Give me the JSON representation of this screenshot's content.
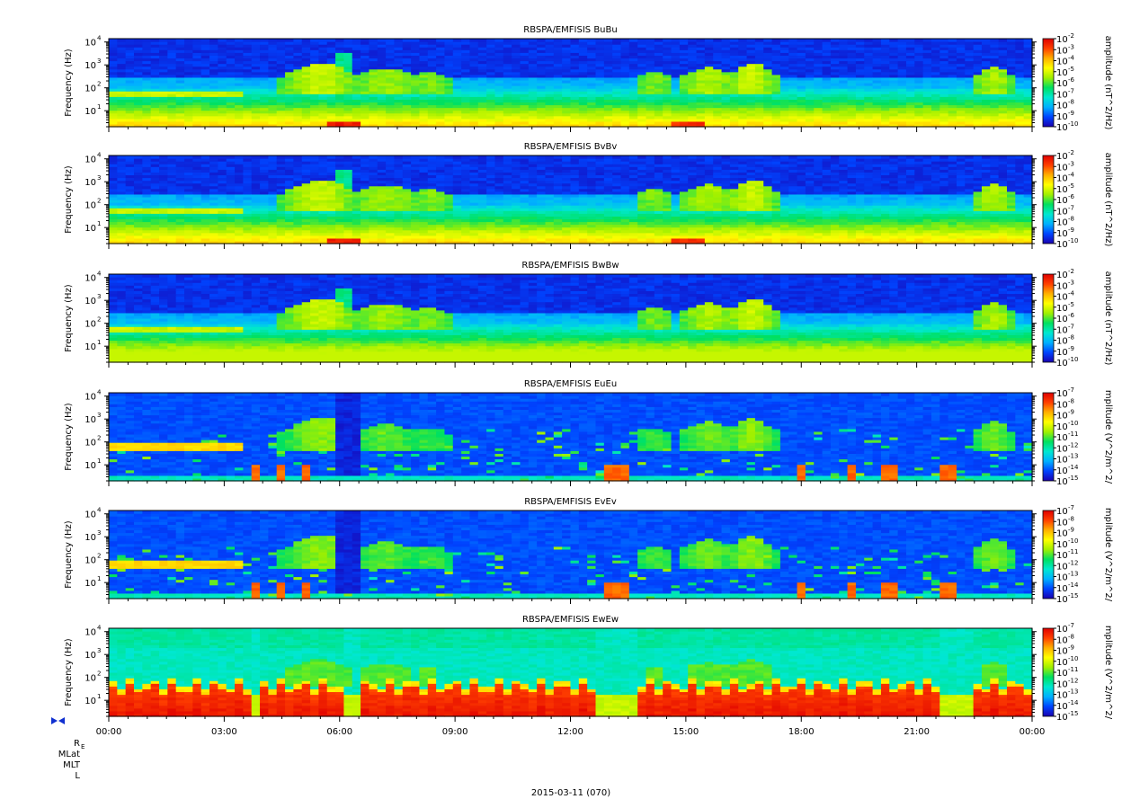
{
  "figure": {
    "date_label": "2015-03-11 (070)",
    "ephemeris_labels": [
      "R",
      "MLat",
      "MLT",
      "L"
    ],
    "ephemeris_subscript": "E"
  },
  "chart_data": {
    "type": "heatmap",
    "x_tick_labels": [
      "00:00",
      "03:00",
      "06:00",
      "09:00",
      "12:00",
      "15:00",
      "18:00",
      "21:00",
      "00:00"
    ],
    "x_range_hours": [
      0,
      24
    ],
    "y_scale": "log",
    "y_range_hz": [
      2,
      14000
    ],
    "y_tick_exponents": [
      1,
      2,
      3,
      4
    ],
    "y_tick_base": "10",
    "colorscale": [
      "#1a00b0",
      "#0044ff",
      "#00b0ff",
      "#00e8d0",
      "#00e060",
      "#a0f000",
      "#ffff00",
      "#ffb000",
      "#ff4000",
      "#e00000"
    ],
    "panels": [
      {
        "title": "RBSPA/EMFISIS  BuBu",
        "ylabel": "Frequency (Hz)",
        "cbar_label": "amplitude (nT^2/Hz)",
        "cbar_exponents": [
          "-10",
          "-9",
          "-8",
          "-7",
          "-6",
          "-5",
          "-4",
          "-3",
          "-2"
        ],
        "kind": "B",
        "variant": 0
      },
      {
        "title": "RBSPA/EMFISIS  BvBv",
        "ylabel": "Frequency (Hz)",
        "cbar_label": "amplitude (nT^2/Hz)",
        "cbar_exponents": [
          "-10",
          "-9",
          "-8",
          "-7",
          "-6",
          "-5",
          "-4",
          "-3",
          "-2"
        ],
        "kind": "B",
        "variant": 1
      },
      {
        "title": "RBSPA/EMFISIS  BwBw",
        "ylabel": "Frequency (Hz)",
        "cbar_label": "amplitude (nT^2/Hz)",
        "cbar_exponents": [
          "-10",
          "-9",
          "-8",
          "-7",
          "-6",
          "-5",
          "-4",
          "-3",
          "-2"
        ],
        "kind": "B",
        "variant": 2
      },
      {
        "title": "RBSPA/EMFISIS  EuEu",
        "ylabel": "Frequency (Hz)",
        "cbar_label": "mplitude (V^2/m^2/",
        "cbar_exponents": [
          "-15",
          "-14",
          "-13",
          "-12",
          "-11",
          "-10",
          "-9",
          "-8",
          "-7"
        ],
        "kind": "E",
        "variant": 0
      },
      {
        "title": "RBSPA/EMFISIS  EvEv",
        "ylabel": "Frequency (Hz)",
        "cbar_label": "mplitude (V^2/m^2/",
        "cbar_exponents": [
          "-15",
          "-14",
          "-13",
          "-12",
          "-11",
          "-10",
          "-9",
          "-8",
          "-7"
        ],
        "kind": "E",
        "variant": 1
      },
      {
        "title": "RBSPA/EMFISIS  EwEw",
        "ylabel": "Frequency (Hz)",
        "cbar_label": "mplitude (V^2/m^2/",
        "cbar_exponents": [
          "-15",
          "-14",
          "-13",
          "-12",
          "-11",
          "-10",
          "-9",
          "-8",
          "-7"
        ],
        "kind": "Ew",
        "variant": 2
      }
    ]
  }
}
